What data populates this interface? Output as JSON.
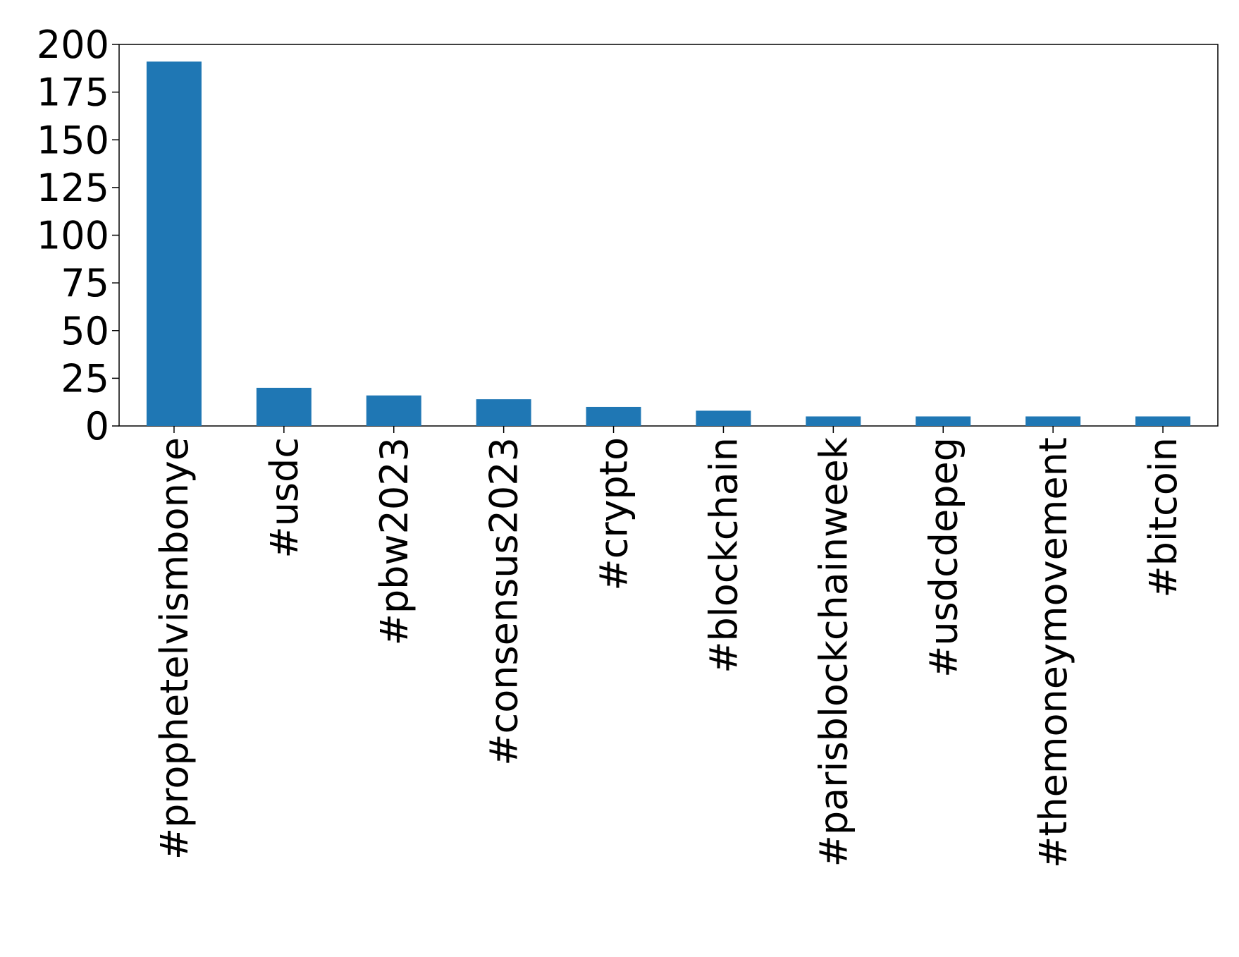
{
  "chart_data": {
    "type": "bar",
    "categories": [
      "#prophetelvismbonye",
      "#usdc",
      "#pbw2023",
      "#consensus2023",
      "#crypto",
      "#blockchain",
      "#parisblockchainweek",
      "#usdcdepeg",
      "#themoneymovement",
      "#bitcoin"
    ],
    "values": [
      191,
      20,
      16,
      14,
      10,
      8,
      5,
      5,
      5,
      5
    ],
    "color": "#1f77b4",
    "ylim": [
      0,
      200
    ],
    "yticks": [
      0,
      25,
      50,
      75,
      100,
      125,
      150,
      175,
      200
    ],
    "grid": false
  }
}
